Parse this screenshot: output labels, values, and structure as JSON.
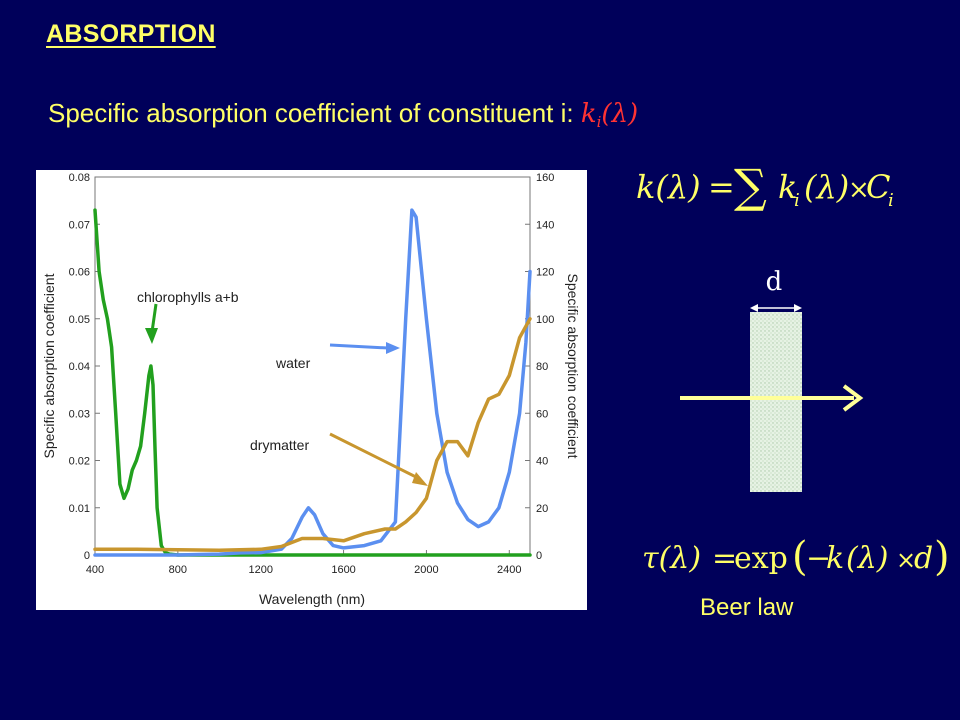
{
  "heading": "ABSORPTION",
  "subtitle": {
    "prefix": "Specific absorption coefficient of constituent i:",
    "symbol": "k",
    "subscript": "i",
    "argument": "(λ)"
  },
  "formula1": {
    "lhs": "k(λ)",
    "equals": "=",
    "sum": "∑",
    "term_k": "k",
    "term_i": "i",
    "term_lambda": "(λ)",
    "times": "×",
    "term_C": "C",
    "term_Ci": "i"
  },
  "diagram": {
    "thickness_label": "d"
  },
  "formula2": {
    "lhs": "τ(λ)",
    "equals": "=",
    "exp": "exp",
    "open": "(",
    "minus": "−",
    "k": "k",
    "lambda": "(λ)",
    "times": "×",
    "d": "d",
    "close": ")"
  },
  "beer_law": "Beer law",
  "colors": {
    "background": "#00005a",
    "text": "#ffff66",
    "accent": "#ff3333",
    "chlorophyll": "#22a01e",
    "water": "#5b8ff0",
    "drymatter": "#c8962e"
  },
  "chart_data": {
    "type": "line",
    "xlabel": "Wavelength (nm)",
    "ylabel_left": "Specific absorption coefficient",
    "ylabel_right": "Specific absorption coefficient",
    "xlim": [
      400,
      2500
    ],
    "ylim_left": [
      0,
      0.08
    ],
    "ylim_right": [
      0,
      160
    ],
    "x_ticks": [
      400,
      800,
      1200,
      1600,
      2000,
      2400
    ],
    "y_ticks_left": [
      "0",
      "0.01",
      "0.02",
      "0.03",
      "0.04",
      "0.05",
      "0.06",
      "0.07",
      "0.08"
    ],
    "y_ticks_right": [
      "0",
      "20",
      "40",
      "60",
      "80",
      "100",
      "120",
      "140",
      "160"
    ],
    "series": [
      {
        "name": "chlorophylls a+b",
        "axis": "left",
        "color": "#22a01e",
        "x": [
          400,
          420,
          440,
          460,
          480,
          500,
          520,
          540,
          560,
          580,
          600,
          620,
          640,
          660,
          670,
          680,
          690,
          700,
          720,
          740,
          760,
          800,
          1200,
          1600,
          2000,
          2500
        ],
        "y": [
          0.073,
          0.06,
          0.054,
          0.05,
          0.044,
          0.03,
          0.015,
          0.012,
          0.014,
          0.018,
          0.02,
          0.023,
          0.03,
          0.038,
          0.04,
          0.036,
          0.022,
          0.01,
          0.002,
          0.0005,
          0.0002,
          0,
          0,
          0,
          0,
          0
        ]
      },
      {
        "name": "water",
        "axis": "right",
        "color": "#5b8ff0",
        "x": [
          400,
          800,
          900,
          1000,
          1100,
          1200,
          1300,
          1350,
          1400,
          1430,
          1460,
          1500,
          1550,
          1600,
          1700,
          1780,
          1850,
          1900,
          1930,
          1950,
          2000,
          2050,
          2100,
          2150,
          2200,
          2250,
          2300,
          2350,
          2400,
          2450,
          2480,
          2500
        ],
        "y": [
          0,
          0,
          0.2,
          0.4,
          0.9,
          1.0,
          2.5,
          7,
          16,
          20,
          17,
          9,
          4,
          3,
          4,
          6,
          14,
          100,
          146,
          143,
          100,
          60,
          35,
          22,
          15,
          12,
          14,
          20,
          35,
          60,
          90,
          120
        ]
      },
      {
        "name": "drymatter",
        "axis": "left",
        "color": "#c8962e",
        "x": [
          400,
          600,
          800,
          1000,
          1200,
          1300,
          1400,
          1500,
          1600,
          1700,
          1800,
          1850,
          1900,
          1950,
          2000,
          2050,
          2100,
          2150,
          2200,
          2250,
          2300,
          2350,
          2400,
          2450,
          2500
        ],
        "y": [
          0.0012,
          0.0012,
          0.0011,
          0.001,
          0.0012,
          0.0018,
          0.0035,
          0.0035,
          0.003,
          0.0045,
          0.0055,
          0.0055,
          0.007,
          0.009,
          0.012,
          0.02,
          0.024,
          0.024,
          0.021,
          0.028,
          0.033,
          0.034,
          0.038,
          0.046,
          0.05
        ]
      }
    ],
    "annotations": [
      {
        "text": "chlorophylls a+b",
        "target_series": "chlorophylls a+b"
      },
      {
        "text": "water",
        "target_series": "water"
      },
      {
        "text": "drymatter",
        "target_series": "drymatter"
      }
    ],
    "grid": false,
    "legend": "none"
  }
}
